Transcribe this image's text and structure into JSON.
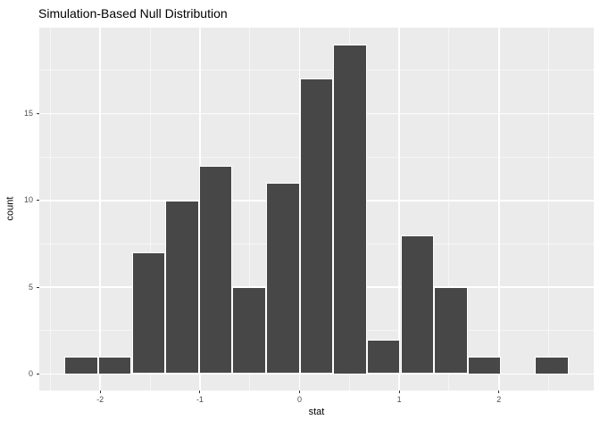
{
  "figure": {
    "title": "Simulation-Based Null Distribution"
  },
  "chart_data": {
    "type": "bar",
    "subtype": "histogram",
    "title": "Simulation-Based Null Distribution",
    "xlabel": "stat",
    "ylabel": "count",
    "bin_start": -2.358,
    "bin_width": 0.337,
    "counts": [
      1,
      1,
      7,
      10,
      12,
      5,
      11,
      17,
      19,
      2,
      8,
      5,
      1,
      0,
      1
    ],
    "x_major_ticks": [
      -2,
      -1,
      0,
      1,
      2
    ],
    "x_tick_labels": [
      "-2",
      "-1",
      "0",
      "1",
      "2"
    ],
    "x_minor_gridlines": [
      -2.5,
      -1.5,
      -0.5,
      0.5,
      1.5,
      2.5
    ],
    "y_major_ticks": [
      0,
      5,
      10,
      15
    ],
    "y_tick_labels": [
      "0",
      "5",
      "10",
      "15"
    ],
    "y_minor_gridlines": [
      2.5,
      7.5,
      12.5,
      17.5
    ],
    "xlim": [
      -2.611,
      2.951
    ],
    "ylim": [
      -0.95,
      19.95
    ],
    "grid": true,
    "legend": "none",
    "total_reps": 100
  },
  "colors": {
    "bar_fill": "#474747",
    "bar_border": "#FFFFFF",
    "panel_bg": "#EBEBEB",
    "grid_major": "#FFFFFF",
    "grid_minor": "#FFFFFF",
    "page_bg": "#FFFFFF",
    "tick_mark": "#333333",
    "tick_label": "#4D4D4D",
    "axis_title": "#000000",
    "title": "#000000"
  }
}
